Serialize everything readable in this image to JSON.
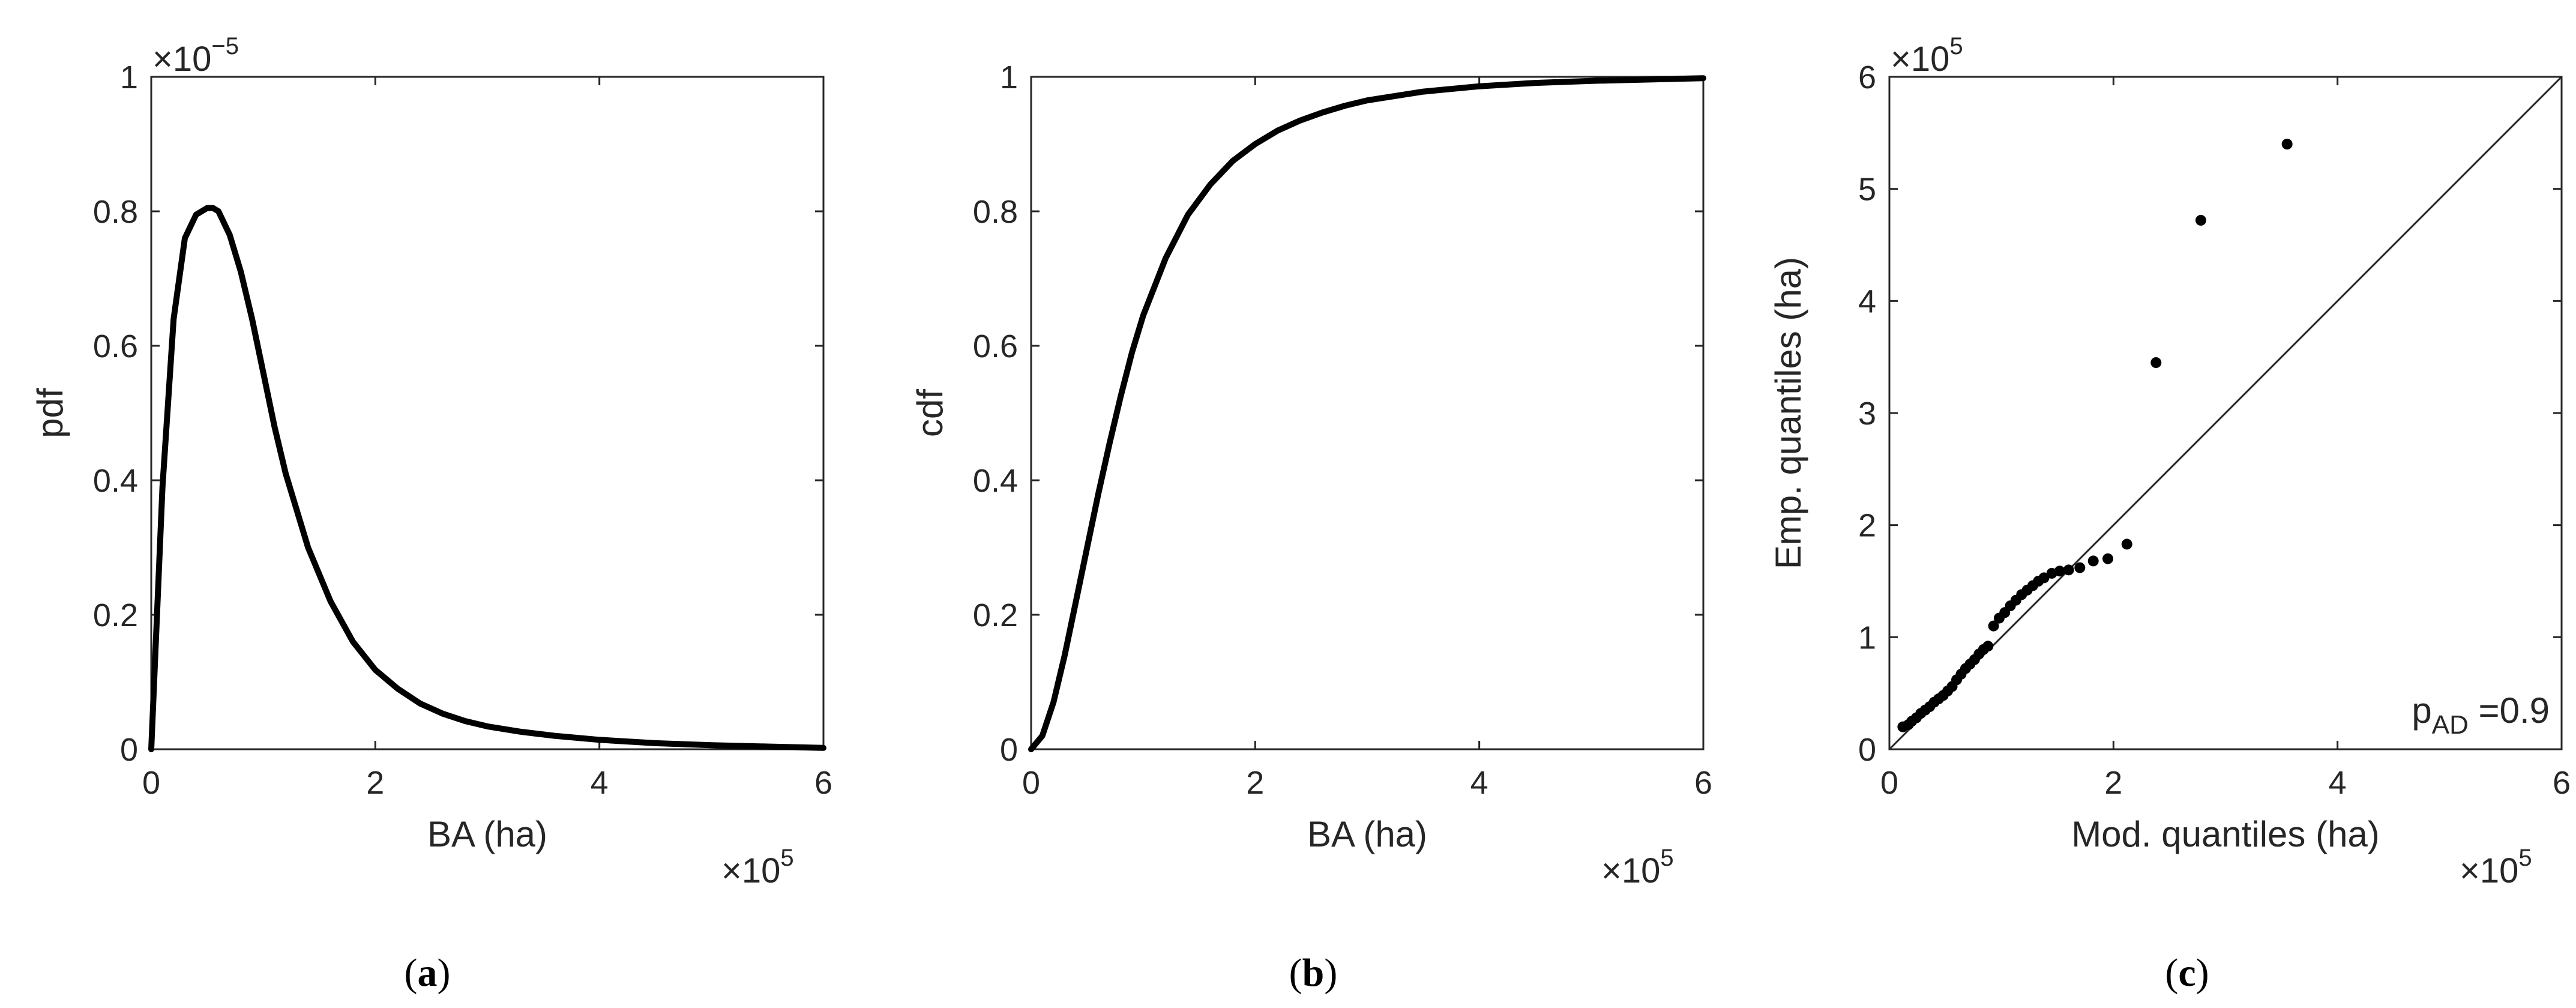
{
  "chart_data": [
    {
      "id": "a",
      "type": "line",
      "caption": "a",
      "xlabel": "BA (ha)",
      "ylabel": "pdf",
      "x_multiplier": "×10",
      "x_exponent": "5",
      "y_multiplier": "×10",
      "y_exponent": "−5",
      "xlim": [
        0,
        6
      ],
      "ylim": [
        0,
        1
      ],
      "xticks": [
        0,
        2,
        4,
        6
      ],
      "yticks": [
        0,
        0.2,
        0.4,
        0.6,
        0.8,
        1
      ],
      "xtick_labels": [
        "0",
        "2",
        "4",
        "6"
      ],
      "ytick_labels": [
        "0",
        "0.2",
        "0.4",
        "0.6",
        "0.8",
        "1"
      ],
      "grid": false,
      "series": [
        {
          "x": [
            0,
            0.1,
            0.2,
            0.3,
            0.4,
            0.5,
            0.55,
            0.6,
            0.7,
            0.8,
            0.9,
            1.0,
            1.1,
            1.2,
            1.4,
            1.6,
            1.8,
            2.0,
            2.2,
            2.4,
            2.6,
            2.8,
            3.0,
            3.3,
            3.6,
            4.0,
            4.5,
            5.0,
            5.5,
            6.0
          ],
          "y": [
            0,
            0.39,
            0.64,
            0.76,
            0.795,
            0.805,
            0.805,
            0.8,
            0.765,
            0.71,
            0.64,
            0.56,
            0.48,
            0.41,
            0.3,
            0.22,
            0.16,
            0.118,
            0.09,
            0.068,
            0.053,
            0.042,
            0.034,
            0.026,
            0.02,
            0.014,
            0.009,
            0.006,
            0.004,
            0.002
          ]
        }
      ]
    },
    {
      "id": "b",
      "type": "line",
      "caption": "b",
      "xlabel": "BA (ha)",
      "ylabel": "cdf",
      "x_multiplier": "×10",
      "x_exponent": "5",
      "xlim": [
        0,
        6
      ],
      "ylim": [
        0,
        1
      ],
      "xticks": [
        0,
        2,
        4,
        6
      ],
      "yticks": [
        0,
        0.2,
        0.4,
        0.6,
        0.8,
        1
      ],
      "xtick_labels": [
        "0",
        "2",
        "4",
        "6"
      ],
      "ytick_labels": [
        "0",
        "0.2",
        "0.4",
        "0.6",
        "0.8",
        "1"
      ],
      "grid": false,
      "series": [
        {
          "x": [
            0,
            0.1,
            0.2,
            0.3,
            0.4,
            0.5,
            0.6,
            0.7,
            0.8,
            0.9,
            1.0,
            1.2,
            1.4,
            1.6,
            1.8,
            2.0,
            2.2,
            2.4,
            2.6,
            2.8,
            3.0,
            3.5,
            4.0,
            4.5,
            5.0,
            5.5,
            6.0
          ],
          "y": [
            0,
            0.02,
            0.07,
            0.14,
            0.22,
            0.3,
            0.38,
            0.455,
            0.525,
            0.59,
            0.645,
            0.73,
            0.795,
            0.84,
            0.875,
            0.9,
            0.92,
            0.935,
            0.947,
            0.957,
            0.965,
            0.978,
            0.986,
            0.991,
            0.994,
            0.996,
            0.998
          ]
        }
      ]
    },
    {
      "id": "c",
      "type": "scatter",
      "caption": "c",
      "xlabel": "Mod. quantiles (ha)",
      "ylabel": "Emp. quantiles (ha)",
      "x_multiplier": "×10",
      "x_exponent": "5",
      "y_multiplier": "×10",
      "y_exponent": "5",
      "xlim": [
        0,
        6
      ],
      "ylim": [
        0,
        6
      ],
      "xticks": [
        0,
        2,
        4,
        6
      ],
      "yticks": [
        0,
        1,
        2,
        3,
        4,
        5,
        6
      ],
      "xtick_labels": [
        "0",
        "2",
        "4",
        "6"
      ],
      "ytick_labels": [
        "0",
        "1",
        "2",
        "3",
        "4",
        "5",
        "6"
      ],
      "grid": false,
      "reference_line": [
        [
          0,
          0
        ],
        [
          6,
          6
        ]
      ],
      "annotation": {
        "text": "p",
        "subscript": "AD",
        "suffix": " =0.9"
      },
      "series": [
        {
          "x": [
            0.12,
            0.17,
            0.2,
            0.24,
            0.28,
            0.32,
            0.36,
            0.4,
            0.44,
            0.48,
            0.52,
            0.56,
            0.6,
            0.64,
            0.68,
            0.72,
            0.76,
            0.8,
            0.84,
            0.88,
            0.93,
            0.98,
            1.03,
            1.08,
            1.13,
            1.18,
            1.23,
            1.28,
            1.33,
            1.38,
            1.45,
            1.52,
            1.6,
            1.7,
            1.82,
            1.95,
            2.12,
            2.38,
            2.78,
            3.55
          ],
          "y": [
            0.2,
            0.22,
            0.25,
            0.28,
            0.32,
            0.35,
            0.38,
            0.42,
            0.45,
            0.48,
            0.52,
            0.56,
            0.62,
            0.67,
            0.72,
            0.76,
            0.8,
            0.85,
            0.89,
            0.92,
            1.1,
            1.17,
            1.22,
            1.28,
            1.33,
            1.38,
            1.42,
            1.46,
            1.5,
            1.53,
            1.57,
            1.59,
            1.6,
            1.62,
            1.68,
            1.7,
            1.83,
            3.45,
            4.72,
            5.4
          ]
        }
      ]
    }
  ]
}
